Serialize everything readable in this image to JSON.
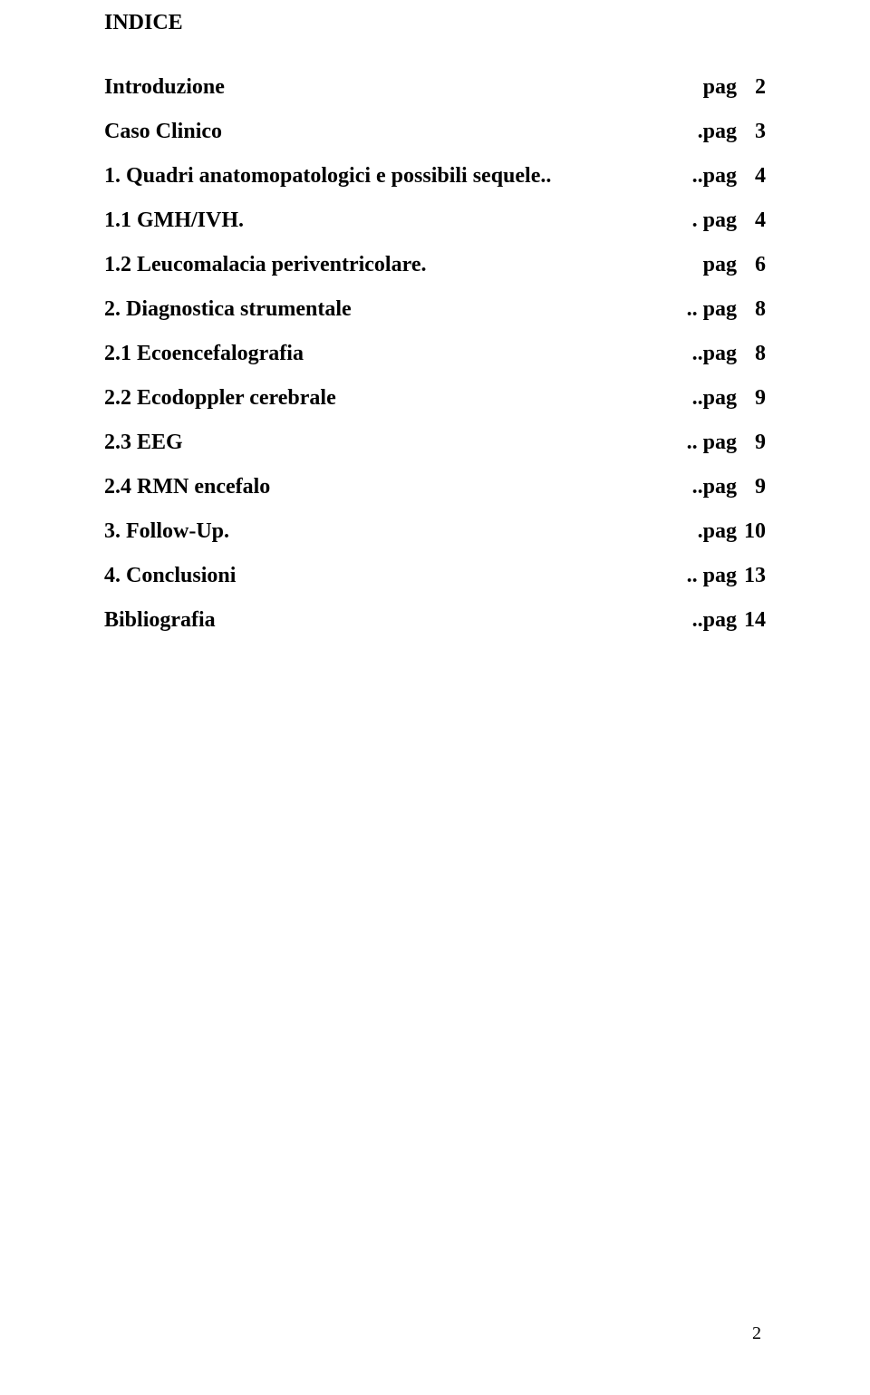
{
  "title": "INDICE",
  "entries": [
    {
      "label": "Introduzione",
      "tail_prefix": "pag",
      "page": "2"
    },
    {
      "label": "Caso Clinico",
      "tail_prefix": ".pag",
      "page": "3"
    },
    {
      "label": "1. Quadri anatomopatologici e possibili sequele..",
      "tail_prefix": "..pag",
      "page": "4"
    },
    {
      "label": "1.1 GMH/IVH.",
      "tail_prefix": ". pag",
      "page": "4"
    },
    {
      "label": "1.2 Leucomalacia periventricolare.",
      "tail_prefix": "pag",
      "page": "6"
    },
    {
      "label": "2. Diagnostica strumentale",
      "tail_prefix": ".. pag",
      "page": "8"
    },
    {
      "label": "2.1 Ecoencefalografia",
      "tail_prefix": "..pag",
      "page": "8"
    },
    {
      "label": "2.2 Ecodoppler cerebrale",
      "tail_prefix": "..pag",
      "page": "9"
    },
    {
      "label": "2.3 EEG",
      "tail_prefix": ".. pag",
      "page": "9"
    },
    {
      "label": "2.4 RMN encefalo",
      "tail_prefix": "..pag",
      "page": "9"
    },
    {
      "label": "3. Follow-Up.",
      "tail_prefix": ".pag",
      "page": "10"
    },
    {
      "label": "4. Conclusioni",
      "tail_prefix": ".. pag",
      "page": "13"
    },
    {
      "label": "Bibliografia",
      "tail_prefix": "..pag",
      "page": "14"
    }
  ],
  "page_number": "2"
}
